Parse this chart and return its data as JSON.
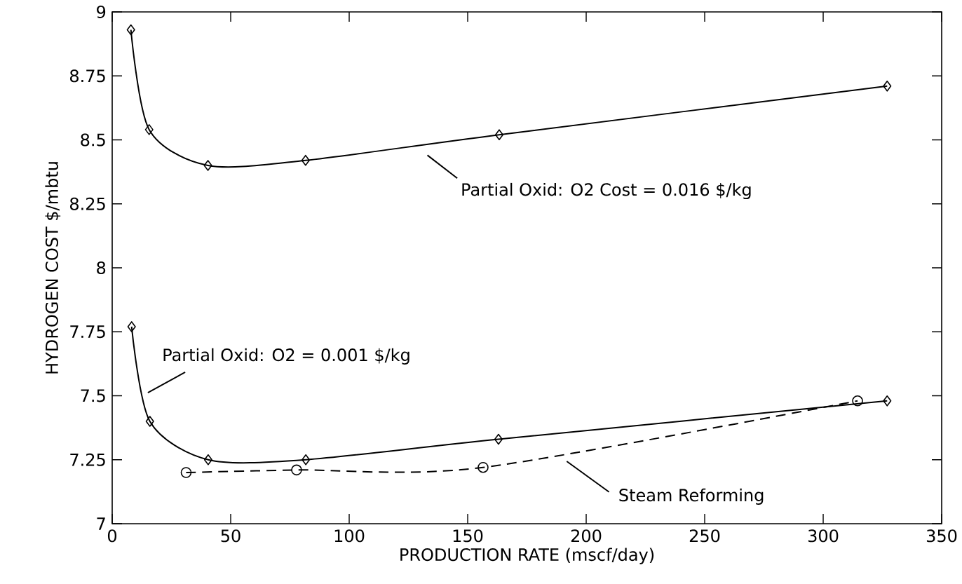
{
  "chart_data": {
    "type": "line",
    "xlabel": "PRODUCTION RATE  (mscf/day)",
    "ylabel": "HYDROGEN  COST   $/mbtu",
    "xlim": [
      0,
      350
    ],
    "xticks": [
      0,
      50,
      100,
      150,
      200,
      250,
      300,
      350
    ],
    "ylim": [
      7,
      9
    ],
    "yticks": [
      7,
      7.25,
      7.5,
      7.75,
      8,
      8.25,
      8.5,
      8.75,
      9
    ],
    "grid": false,
    "legend": false,
    "series": [
      {
        "name": "Partial Oxid: O2 Cost = 0.016 $/kg",
        "color": "#000000",
        "marker": "diamond",
        "line_style": "solid",
        "x": [
          7.9,
          15.6,
          40.4,
          81.6,
          163.3,
          327
        ],
        "values": [
          8.93,
          8.54,
          8.4,
          8.42,
          8.52,
          8.71
        ]
      },
      {
        "name": "Partial Oxid: O2 = 0.001 $/kg",
        "color": "#000000",
        "marker": "diamond",
        "line_style": "solid",
        "x": [
          8.2,
          15.9,
          40.5,
          81.7,
          163,
          327
        ],
        "values": [
          7.77,
          7.4,
          7.25,
          7.25,
          7.33,
          7.48
        ]
      },
      {
        "name": "Steam Reforming",
        "color": "#000000",
        "marker": "circle",
        "line_style": "dashed",
        "x": [
          31.2,
          77.8,
          156.5,
          314.5
        ],
        "values": [
          7.2,
          7.21,
          7.22,
          7.48
        ]
      }
    ]
  }
}
